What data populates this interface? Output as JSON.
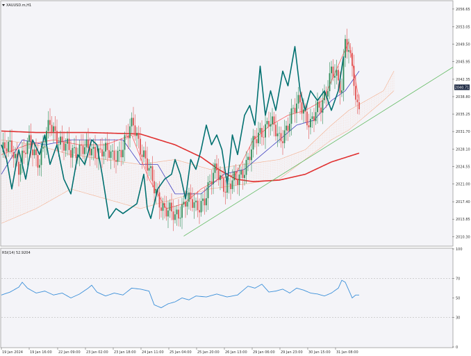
{
  "symbol": "XAUUSD.m,H1",
  "rsi_label": "RSI(14) 52.9204",
  "colors": {
    "background": "#F4F4F8",
    "bull": "#2E8B57",
    "bear": "#E05050",
    "ma_long": "#E03030",
    "tenkan": "#FF6060",
    "kijun": "#4040C0",
    "chikou": "#007070",
    "cloud": "#F4A078",
    "trendline": "#5CB85C",
    "rsi": "#3A8FD9",
    "price_box": "#1E2A44"
  },
  "chart_data": [
    {
      "type": "candlestick",
      "title": "XAUUSD.m,H1",
      "x_labels": [
        "19 Jan 2024",
        "19 Jan 16:00",
        "22 Jan 09:00",
        "23 Jan 02:00",
        "23 Jan 18:00",
        "24 Jan 11:00",
        "25 Jan 04:00",
        "25 Jan 20:00",
        "26 Jan 13:00",
        "29 Jan 06:00",
        "29 Jan 23:00",
        "30 Jan 15:00",
        "31 Jan 08:00"
      ],
      "y_ticks": [
        "2056.65",
        "2053.05",
        "2049.50",
        "2045.95",
        "2042.35",
        "2038.80",
        "2035.25",
        "2031.70",
        "2028.10",
        "2024.55",
        "2021.00",
        "2017.40",
        "2013.85",
        "2010.30"
      ],
      "ylim": [
        2008.5,
        2058.2
      ],
      "current_price": "2040.71",
      "price_anchors": [
        [
          0,
          2027.5
        ],
        [
          6,
          2028.5
        ],
        [
          10,
          2025
        ],
        [
          16,
          2029
        ],
        [
          22,
          2026
        ],
        [
          28,
          2033
        ],
        [
          34,
          2030
        ],
        [
          40,
          2027
        ],
        [
          46,
          2029
        ],
        [
          52,
          2027
        ],
        [
          58,
          2028.5
        ],
        [
          64,
          2026
        ],
        [
          70,
          2029
        ],
        [
          76,
          2033
        ],
        [
          82,
          2027
        ],
        [
          88,
          2020
        ],
        [
          94,
          2016
        ],
        [
          100,
          2014
        ],
        [
          106,
          2018
        ],
        [
          112,
          2016
        ],
        [
          118,
          2019
        ],
        [
          124,
          2024
        ],
        [
          130,
          2020
        ],
        [
          136,
          2022
        ],
        [
          142,
          2026
        ],
        [
          148,
          2031
        ],
        [
          154,
          2034
        ],
        [
          160,
          2030
        ],
        [
          166,
          2034
        ],
        [
          172,
          2038
        ],
        [
          178,
          2033
        ],
        [
          184,
          2037
        ],
        [
          190,
          2044
        ],
        [
          196,
          2040
        ],
        [
          198,
          2052
        ],
        [
          200,
          2048
        ],
        [
          202,
          2046
        ],
        [
          204,
          2036
        ],
        [
          206,
          2037
        ]
      ],
      "ma_long": [
        [
          0,
          2031.8
        ],
        [
          20,
          2031.5
        ],
        [
          50,
          2031.5
        ],
        [
          80,
          2031.2
        ],
        [
          100,
          2029
        ],
        [
          115,
          2026.5
        ],
        [
          125,
          2024
        ],
        [
          135,
          2022
        ],
        [
          145,
          2021.5
        ],
        [
          160,
          2021.8
        ],
        [
          175,
          2023
        ],
        [
          190,
          2025.5
        ],
        [
          206,
          2027.3
        ]
      ],
      "tenkan": [
        [
          0,
          2027
        ],
        [
          15,
          2029
        ],
        [
          30,
          2030
        ],
        [
          45,
          2029
        ],
        [
          60,
          2029
        ],
        [
          75,
          2031
        ],
        [
          85,
          2022
        ],
        [
          95,
          2016
        ],
        [
          105,
          2017
        ],
        [
          115,
          2020
        ],
        [
          125,
          2022
        ],
        [
          135,
          2023
        ],
        [
          145,
          2030
        ],
        [
          155,
          2033
        ],
        [
          165,
          2035
        ],
        [
          175,
          2036
        ],
        [
          185,
          2038
        ],
        [
          195,
          2046
        ],
        [
          200,
          2050
        ],
        [
          206,
          2038
        ]
      ],
      "kijun": [
        [
          0,
          2023
        ],
        [
          12,
          2030
        ],
        [
          25,
          2029
        ],
        [
          40,
          2030
        ],
        [
          55,
          2030
        ],
        [
          70,
          2030
        ],
        [
          80,
          2025
        ],
        [
          90,
          2025
        ],
        [
          100,
          2019
        ],
        [
          115,
          2019
        ],
        [
          128,
          2023
        ],
        [
          140,
          2024
        ],
        [
          150,
          2027
        ],
        [
          160,
          2030
        ],
        [
          170,
          2033
        ],
        [
          180,
          2034
        ],
        [
          190,
          2038
        ],
        [
          198,
          2040
        ],
        [
          206,
          2044
        ]
      ],
      "chikou": [
        [
          0,
          2029
        ],
        [
          3,
          2026
        ],
        [
          6,
          2020
        ],
        [
          10,
          2028
        ],
        [
          14,
          2022
        ],
        [
          18,
          2030
        ],
        [
          22,
          2027
        ],
        [
          25,
          2031
        ],
        [
          28,
          2025
        ],
        [
          32,
          2029
        ],
        [
          36,
          2022
        ],
        [
          40,
          2019
        ],
        [
          44,
          2027
        ],
        [
          48,
          2025
        ],
        [
          52,
          2030
        ],
        [
          55,
          2029
        ],
        [
          58,
          2023
        ],
        [
          62,
          2014
        ],
        [
          66,
          2016
        ],
        [
          70,
          2015
        ],
        [
          74,
          2016
        ],
        [
          78,
          2017
        ],
        [
          82,
          2023
        ],
        [
          84,
          2016
        ],
        [
          86,
          2014
        ],
        [
          90,
          2020
        ],
        [
          94,
          2022
        ],
        [
          98,
          2023
        ],
        [
          100,
          2026
        ],
        [
          103,
          2023
        ],
        [
          106,
          2018
        ],
        [
          109,
          2026
        ],
        [
          112,
          2024
        ],
        [
          115,
          2028
        ],
        [
          118,
          2033
        ],
        [
          121,
          2029
        ],
        [
          124,
          2031
        ],
        [
          127,
          2028
        ],
        [
          130,
          2021
        ],
        [
          133,
          2031
        ],
        [
          136,
          2027
        ],
        [
          140,
          2035
        ],
        [
          143,
          2037
        ],
        [
          146,
          2033
        ],
        [
          149,
          2045
        ],
        [
          152,
          2035
        ],
        [
          155,
          2040
        ],
        [
          158,
          2036
        ],
        [
          162,
          2044
        ],
        [
          165,
          2041
        ],
        [
          169,
          2049
        ],
        [
          172,
          2040
        ],
        [
          175,
          2036
        ],
        [
          178,
          2040
        ],
        [
          182,
          2038
        ],
        [
          186,
          2040
        ],
        [
          190,
          2036
        ],
        [
          194,
          2040
        ],
        [
          197,
          2047
        ]
      ],
      "cloud_upper": [
        [
          0,
          2030
        ],
        [
          20,
          2029
        ],
        [
          40,
          2027
        ],
        [
          60,
          2026
        ],
        [
          80,
          2025
        ],
        [
          100,
          2026
        ],
        [
          120,
          2024
        ],
        [
          140,
          2025
        ],
        [
          160,
          2026
        ],
        [
          175,
          2028
        ],
        [
          190,
          2033
        ],
        [
          200,
          2036
        ],
        [
          210,
          2038
        ],
        [
          220,
          2040
        ],
        [
          226,
          2044
        ]
      ],
      "cloud_lower": [
        [
          0,
          2013
        ],
        [
          20,
          2016
        ],
        [
          40,
          2020
        ],
        [
          60,
          2018
        ],
        [
          80,
          2016
        ],
        [
          100,
          2018
        ],
        [
          120,
          2020
        ],
        [
          140,
          2021
        ],
        [
          160,
          2022
        ],
        [
          175,
          2026
        ],
        [
          190,
          2030
        ],
        [
          200,
          2032
        ],
        [
          210,
          2035
        ],
        [
          220,
          2038
        ],
        [
          226,
          2040
        ]
      ],
      "trendline": [
        [
          2010.4,
          2044.8
        ]
      ]
    },
    {
      "type": "line",
      "title": "RSI(14) 52.9204",
      "y_ticks": [
        "100",
        "70",
        "50",
        "30",
        "0"
      ],
      "levels": [
        70,
        30
      ],
      "ylim": [
        0,
        100
      ],
      "rsi": [
        [
          0,
          53
        ],
        [
          5,
          56
        ],
        [
          10,
          61
        ],
        [
          12,
          66
        ],
        [
          15,
          60
        ],
        [
          20,
          55
        ],
        [
          25,
          57
        ],
        [
          30,
          53
        ],
        [
          35,
          55
        ],
        [
          40,
          50
        ],
        [
          45,
          54
        ],
        [
          50,
          60
        ],
        [
          52,
          63
        ],
        [
          55,
          56
        ],
        [
          60,
          52
        ],
        [
          65,
          55
        ],
        [
          70,
          53
        ],
        [
          75,
          60
        ],
        [
          80,
          59
        ],
        [
          85,
          57
        ],
        [
          88,
          43
        ],
        [
          92,
          40
        ],
        [
          96,
          44
        ],
        [
          100,
          46
        ],
        [
          104,
          50
        ],
        [
          108,
          48
        ],
        [
          112,
          52
        ],
        [
          118,
          51
        ],
        [
          124,
          54
        ],
        [
          130,
          51
        ],
        [
          136,
          53
        ],
        [
          142,
          62
        ],
        [
          146,
          60
        ],
        [
          150,
          64
        ],
        [
          154,
          56
        ],
        [
          158,
          57
        ],
        [
          162,
          59
        ],
        [
          166,
          55
        ],
        [
          170,
          60
        ],
        [
          174,
          58
        ],
        [
          178,
          55
        ],
        [
          182,
          54
        ],
        [
          186,
          52
        ],
        [
          190,
          55
        ],
        [
          194,
          60
        ],
        [
          196,
          68
        ],
        [
          198,
          66
        ],
        [
          200,
          58
        ],
        [
          202,
          50
        ],
        [
          204,
          53
        ],
        [
          206,
          53
        ]
      ]
    }
  ]
}
